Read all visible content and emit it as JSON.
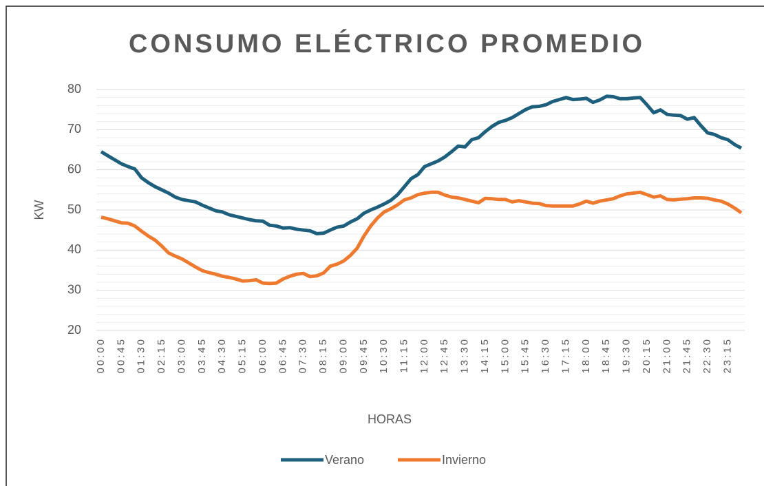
{
  "chart_data": {
    "type": "line",
    "title": "CONSUMO ELÉCTRICO PROMEDIO",
    "x_label": "HORAS",
    "y_label": "KW",
    "categories": [
      "00:00",
      null,
      null,
      "00:45",
      null,
      null,
      "01:30",
      null,
      null,
      "02:15",
      null,
      null,
      "03:00",
      null,
      null,
      "03:45",
      null,
      null,
      "04:30",
      null,
      null,
      "05:15",
      null,
      null,
      "06:00",
      null,
      null,
      "06:45",
      null,
      null,
      "07:30",
      null,
      null,
      "08:15",
      null,
      null,
      "09:00",
      null,
      null,
      "09:45",
      null,
      null,
      "10:30",
      null,
      null,
      "11:15",
      null,
      null,
      "12:00",
      null,
      null,
      "12:45",
      null,
      null,
      "13:30",
      null,
      null,
      "14:15",
      null,
      null,
      "15:00",
      null,
      null,
      "15:45",
      null,
      null,
      "16:30",
      null,
      null,
      "17:15",
      null,
      null,
      "18:00",
      null,
      null,
      "18:45",
      null,
      null,
      "19:30",
      null,
      null,
      "20:15",
      null,
      null,
      "21:00",
      null,
      null,
      "21:45",
      null,
      null,
      "22:30",
      null,
      null,
      "23:15",
      null,
      null
    ],
    "series": [
      {
        "name": "Verano",
        "color": "#1d5f7c",
        "values": [
          64.5,
          63.5,
          62.5,
          61.5,
          60.8,
          60.2,
          58,
          56.8,
          55.8,
          55,
          54.2,
          53.2,
          52.6,
          52.3,
          52,
          51.2,
          50.5,
          49.8,
          49.5,
          48.8,
          48.4,
          48,
          47.6,
          47.3,
          47.2,
          46.2,
          46,
          45.5,
          45.6,
          45.2,
          45,
          44.8,
          44.1,
          44.2,
          45,
          45.7,
          46,
          47,
          47.8,
          49.2,
          50,
          50.7,
          51.5,
          52.4,
          53.8,
          55.8,
          57.8,
          58.8,
          60.8,
          61.5,
          62.2,
          63.2,
          64.5,
          65.9,
          65.7,
          67.5,
          68,
          69.5,
          70.8,
          71.8,
          72.3,
          73,
          74,
          75,
          75.7,
          75.8,
          76.2,
          77,
          77.5,
          78,
          77.5,
          77.6,
          77.8,
          76.8,
          77.4,
          78.3,
          78.2,
          77.7,
          77.7,
          77.9,
          78,
          76.2,
          74.2,
          74.9,
          73.8,
          73.6,
          73.5,
          72.6,
          73,
          71,
          69.2,
          68.8,
          68,
          67.5,
          66.3,
          65.4
        ]
      },
      {
        "name": "Invierno",
        "color": "#ee7a30",
        "values": [
          48.2,
          47.8,
          47.3,
          46.8,
          46.7,
          46,
          44.7,
          43.5,
          42.5,
          41,
          39.3,
          38.5,
          37.8,
          36.8,
          35.8,
          34.9,
          34.4,
          34,
          33.5,
          33.2,
          32.8,
          32.3,
          32.4,
          32.6,
          31.8,
          31.7,
          31.8,
          32.8,
          33.5,
          34,
          34.2,
          33.4,
          33.6,
          34.3,
          36,
          36.5,
          37.3,
          38.7,
          40.5,
          43.5,
          46,
          48,
          49.5,
          50.3,
          51.3,
          52.5,
          53,
          53.8,
          54.2,
          54.4,
          54.4,
          53.7,
          53.2,
          53,
          52.6,
          52.2,
          51.8,
          52.9,
          52.8,
          52.6,
          52.6,
          52,
          52.3,
          52,
          51.7,
          51.6,
          51.1,
          51,
          51,
          51,
          51,
          51.5,
          52.2,
          51.7,
          52.2,
          52.5,
          52.8,
          53.5,
          54,
          54.2,
          54.4,
          53.8,
          53.2,
          53.5,
          52.6,
          52.5,
          52.7,
          52.8,
          53,
          53,
          52.9,
          52.5,
          52.2,
          51.5,
          50.5,
          49.3
        ]
      }
    ],
    "ylim": [
      20,
      80
    ],
    "yticks": [
      20,
      30,
      40,
      50,
      60,
      70,
      80
    ],
    "minor_yticks": [
      22,
      24,
      26,
      28,
      32,
      34,
      36,
      38,
      42,
      44,
      46,
      48,
      52,
      54,
      56,
      58,
      62,
      64,
      66,
      68,
      72,
      74,
      76,
      78
    ],
    "grid": true,
    "legend": "bottom"
  }
}
